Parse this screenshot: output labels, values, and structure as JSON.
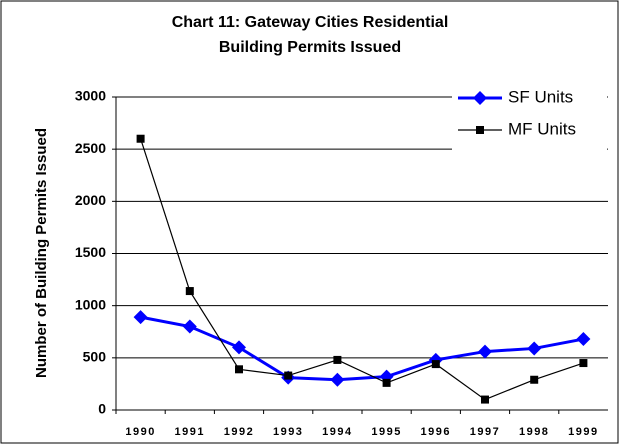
{
  "chart_data": {
    "type": "line",
    "title": "Chart 11: Gateway Cities Residential Building Permits Issued",
    "ylabel": "Number of Building Permits Issued",
    "categories": [
      "1990",
      "1991",
      "1992",
      "1993",
      "1994",
      "1995",
      "1996",
      "1997",
      "1998",
      "1999"
    ],
    "series": [
      {
        "name": "SF Units",
        "color": "#0000ff",
        "marker": "diamond",
        "values": [
          890,
          800,
          600,
          310,
          290,
          320,
          480,
          560,
          590,
          680
        ]
      },
      {
        "name": "MF Units",
        "color": "#000000",
        "marker": "square",
        "values": [
          2600,
          1140,
          390,
          330,
          480,
          260,
          440,
          100,
          290,
          450
        ]
      }
    ],
    "ylim": [
      0,
      3000
    ],
    "yticks": [
      0,
      500,
      1000,
      1500,
      2000,
      2500,
      3000
    ],
    "grid": true,
    "legend": "upper right"
  }
}
